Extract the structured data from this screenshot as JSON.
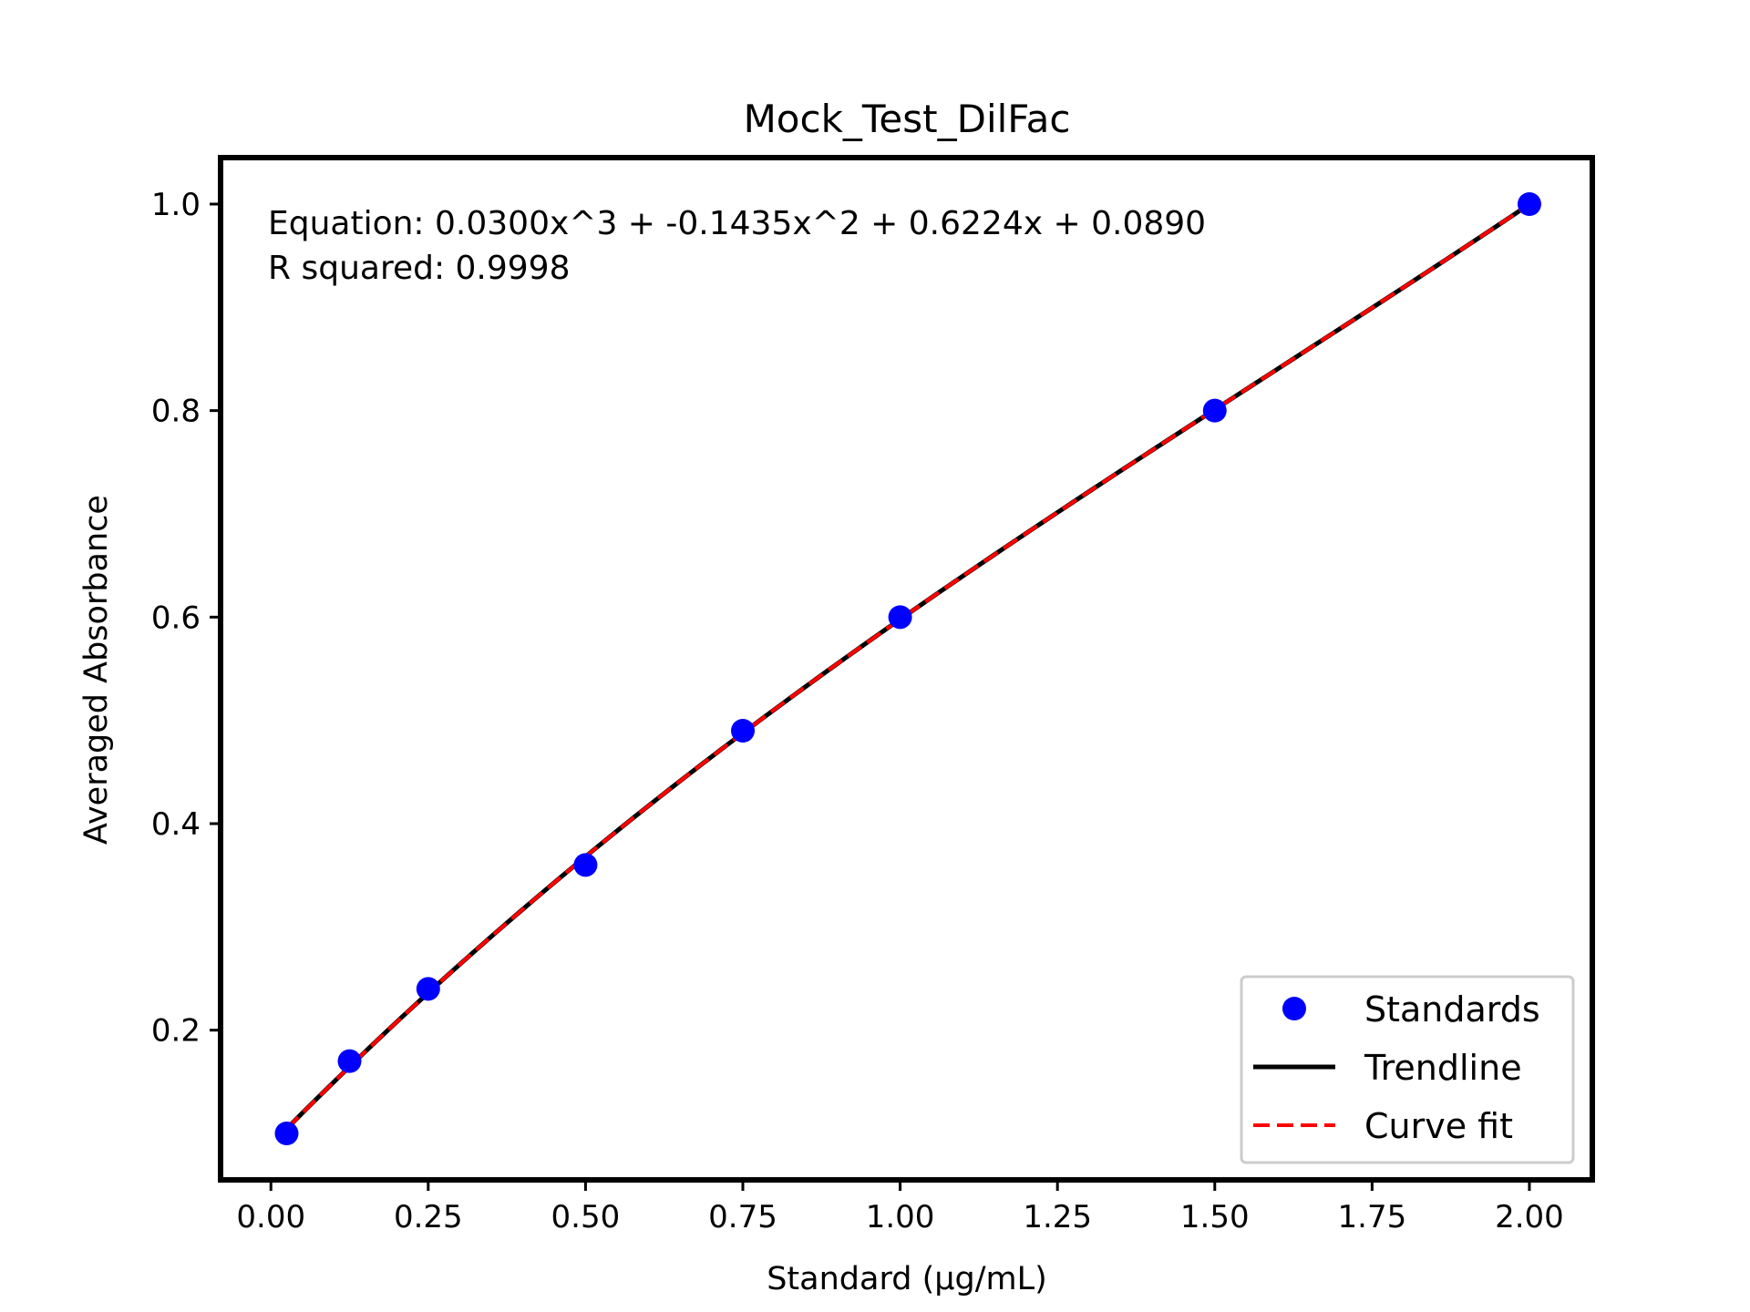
{
  "chart_data": {
    "type": "scatter",
    "title": "Mock_Test_DilFac",
    "xlabel": "Standard (μg/mL)",
    "ylabel": "Averaged Absorbance",
    "xlim": [
      -0.08,
      2.1
    ],
    "ylim": [
      0.055,
      1.045
    ],
    "xticks": [
      "0.00",
      "0.25",
      "0.50",
      "0.75",
      "1.00",
      "1.25",
      "1.50",
      "1.75",
      "2.00"
    ],
    "yticks": [
      "0.2",
      "0.4",
      "0.6",
      "0.8",
      "1.0"
    ],
    "grid": false,
    "legend_position": "lower-right",
    "annotations": [
      "Equation: 0.0300x^3 + -0.1435x^2 + 0.6224x + 0.0890",
      "R squared: 0.9998"
    ],
    "fit_coefficients": [
      0.03,
      -0.1435,
      0.6224,
      0.089
    ],
    "series": [
      {
        "name": "Standards",
        "kind": "scatter",
        "color": "#0000ff",
        "x": [
          0.025,
          0.125,
          0.25,
          0.5,
          0.75,
          1.0,
          1.5,
          2.0
        ],
        "y": [
          0.1,
          0.17,
          0.24,
          0.36,
          0.49,
          0.6,
          0.8,
          1.0
        ]
      },
      {
        "name": "Trendline",
        "kind": "line",
        "color": "#000000",
        "style": "solid"
      },
      {
        "name": "Curve fit",
        "kind": "line",
        "color": "#ff0000",
        "style": "dashed"
      }
    ]
  }
}
